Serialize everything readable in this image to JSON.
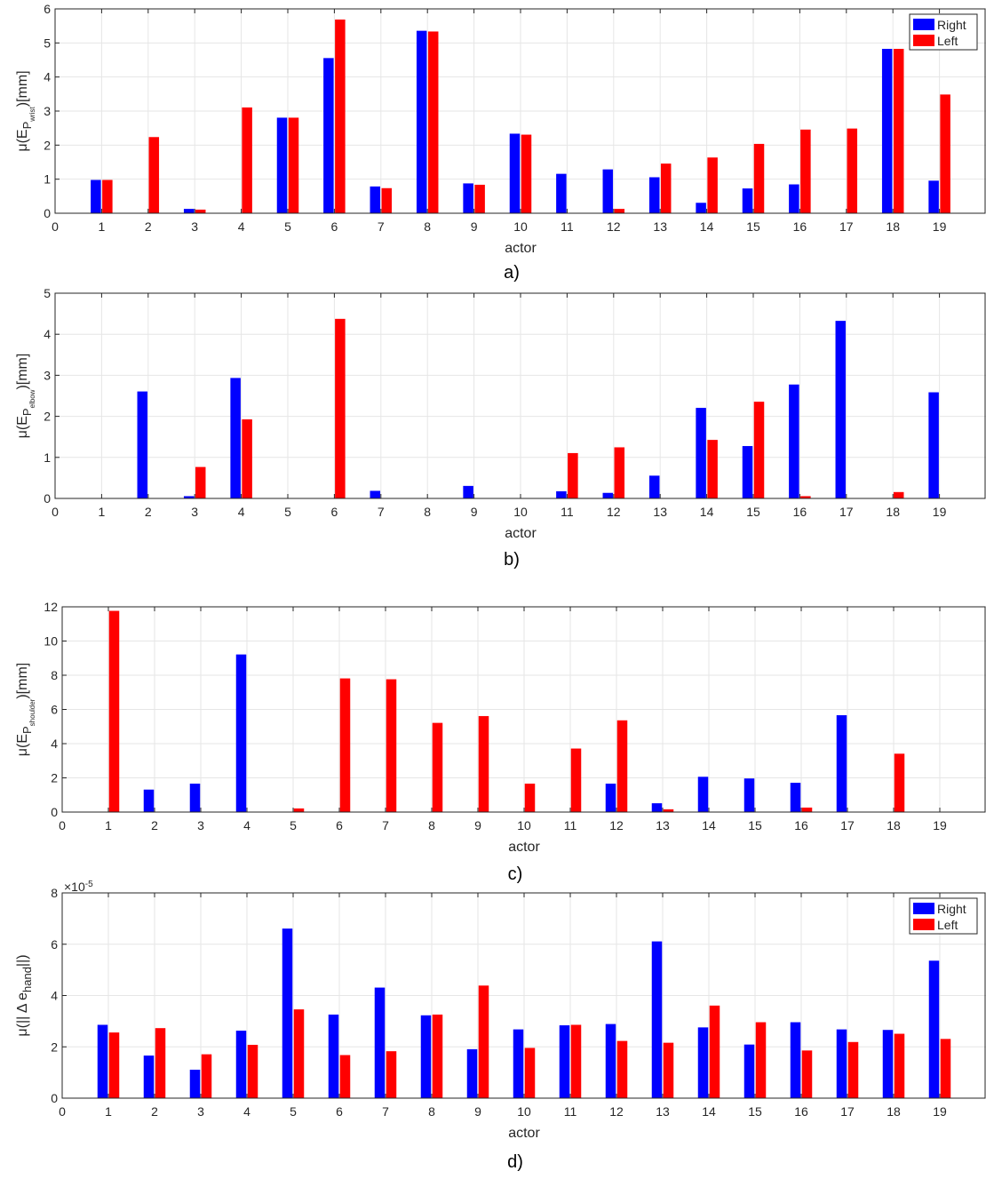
{
  "colors": {
    "right": "#0000ff",
    "left": "#ff0000"
  },
  "chart_data": [
    {
      "type": "bar",
      "caption": "a)",
      "xlabel": "actor",
      "ylabel_main": "μ(E",
      "ylabel_sub": "P",
      "ylabel_subsub": "wrist",
      "ylabel_tail": ")[mm]",
      "ylim": [
        0,
        6
      ],
      "yticks": [
        0,
        1,
        2,
        3,
        4,
        5,
        6
      ],
      "exponent": "",
      "grid": true,
      "legend": "top-right",
      "categories": [
        1,
        2,
        3,
        4,
        5,
        6,
        7,
        8,
        9,
        10,
        11,
        12,
        13,
        14,
        15,
        16,
        17,
        18,
        19
      ],
      "series": [
        {
          "name": "Right",
          "values": [
            0.97,
            0,
            0.12,
            0,
            2.8,
            4.55,
            0.78,
            5.35,
            0.87,
            2.33,
            1.15,
            1.28,
            1.05,
            0.3,
            0.72,
            0.84,
            0,
            4.82,
            0.95
          ]
        },
        {
          "name": "Left",
          "values": [
            0.97,
            2.23,
            0.1,
            3.1,
            2.8,
            5.68,
            0.73,
            5.33,
            0.83,
            2.3,
            0,
            0.12,
            1.45,
            1.63,
            2.03,
            2.45,
            2.48,
            4.82,
            3.48
          ]
        }
      ]
    },
    {
      "type": "bar",
      "caption": "b)",
      "xlabel": "actor",
      "ylabel_main": "μ(E",
      "ylabel_sub": "P",
      "ylabel_subsub": "elbow",
      "ylabel_tail": ")[mm]",
      "ylim": [
        0,
        5
      ],
      "yticks": [
        0,
        1,
        2,
        3,
        4,
        5
      ],
      "exponent": "",
      "grid": true,
      "legend": "none",
      "categories": [
        1,
        2,
        3,
        4,
        5,
        6,
        7,
        8,
        9,
        10,
        11,
        12,
        13,
        14,
        15,
        16,
        17,
        18,
        19
      ],
      "series": [
        {
          "name": "Right",
          "values": [
            0,
            2.6,
            0.05,
            2.93,
            0,
            0,
            0.18,
            0,
            0.3,
            0,
            0.17,
            0.13,
            0.55,
            2.2,
            1.27,
            2.77,
            4.32,
            0,
            2.58
          ]
        },
        {
          "name": "Left",
          "values": [
            0,
            0,
            0.76,
            1.92,
            0,
            4.37,
            0,
            0,
            0,
            0,
            1.1,
            1.24,
            0,
            1.42,
            2.35,
            0.05,
            0,
            0.15,
            0
          ]
        }
      ]
    },
    {
      "type": "bar",
      "caption": "c)",
      "xlabel": "actor",
      "ylabel_main": "μ(E",
      "ylabel_sub": "P",
      "ylabel_subsub": "shoulder",
      "ylabel_tail": ")[mm]",
      "ylim": [
        0,
        12
      ],
      "yticks": [
        0,
        2,
        4,
        6,
        8,
        10,
        12
      ],
      "exponent": "",
      "grid": true,
      "legend": "none",
      "categories": [
        1,
        2,
        3,
        4,
        5,
        6,
        7,
        8,
        9,
        10,
        11,
        12,
        13,
        14,
        15,
        16,
        17,
        18,
        19
      ],
      "series": [
        {
          "name": "Right",
          "values": [
            0,
            1.3,
            1.65,
            9.2,
            0,
            0,
            0,
            0,
            0,
            0,
            0,
            1.65,
            0.5,
            2.05,
            1.95,
            1.7,
            5.65,
            0,
            0
          ]
        },
        {
          "name": "Left",
          "values": [
            11.75,
            0,
            0,
            0,
            0.2,
            7.8,
            7.75,
            5.2,
            5.6,
            1.65,
            3.7,
            5.35,
            0.15,
            0,
            0,
            0.25,
            0,
            3.4,
            0
          ]
        }
      ]
    },
    {
      "type": "bar",
      "caption": "d)",
      "xlabel": "actor",
      "ylabel_main": "μ(|| Δ e",
      "ylabel_sub": "hand",
      "ylabel_subsub": "",
      "ylabel_tail": "||)",
      "ylim": [
        0,
        8
      ],
      "yticks": [
        0,
        2,
        4,
        6,
        8
      ],
      "exponent": "×10",
      "exponent_power": "-5",
      "grid": true,
      "legend": "top-right",
      "categories": [
        1,
        2,
        3,
        4,
        5,
        6,
        7,
        8,
        9,
        10,
        11,
        12,
        13,
        14,
        15,
        16,
        17,
        18,
        19
      ],
      "series": [
        {
          "name": "Right",
          "values": [
            2.85,
            1.65,
            1.1,
            2.62,
            6.6,
            3.25,
            4.3,
            3.22,
            1.9,
            2.67,
            2.83,
            2.88,
            6.1,
            2.75,
            2.08,
            2.95,
            2.67,
            2.65,
            5.35
          ]
        },
        {
          "name": "Left",
          "values": [
            2.55,
            2.72,
            1.7,
            2.07,
            3.45,
            1.67,
            1.82,
            3.25,
            4.38,
            1.95,
            2.85,
            2.22,
            2.15,
            3.6,
            2.95,
            1.85,
            2.18,
            2.5,
            2.3
          ]
        }
      ]
    }
  ]
}
